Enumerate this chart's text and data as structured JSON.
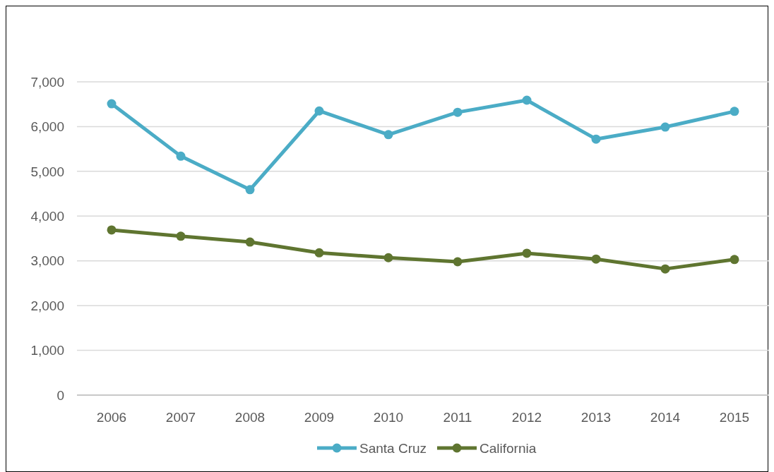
{
  "chart_data": {
    "type": "line",
    "categories": [
      "2006",
      "2007",
      "2008",
      "2009",
      "2010",
      "2011",
      "2012",
      "2013",
      "2014",
      "2015"
    ],
    "series": [
      {
        "name": "Santa Cruz",
        "color": "#4bacc6",
        "values": [
          6510,
          5340,
          4590,
          6350,
          5820,
          6320,
          6590,
          5720,
          5990,
          6340
        ]
      },
      {
        "name": "California",
        "color": "#5f7530",
        "values": [
          3690,
          3550,
          3420,
          3180,
          3070,
          2980,
          3170,
          3040,
          2820,
          3030
        ]
      }
    ],
    "ylim": [
      0,
      7000
    ],
    "yticks": [
      {
        "value": 0,
        "label": "0"
      },
      {
        "value": 1000,
        "label": "1,000"
      },
      {
        "value": 2000,
        "label": "2,000"
      },
      {
        "value": 3000,
        "label": "3,000"
      },
      {
        "value": 4000,
        "label": "4,000"
      },
      {
        "value": 5000,
        "label": "5,000"
      },
      {
        "value": 6000,
        "label": "6,000"
      },
      {
        "value": 7000,
        "label": "7,000"
      }
    ],
    "grid": "y",
    "legend": "bottom",
    "marker": "circle",
    "line_style": "solid"
  }
}
